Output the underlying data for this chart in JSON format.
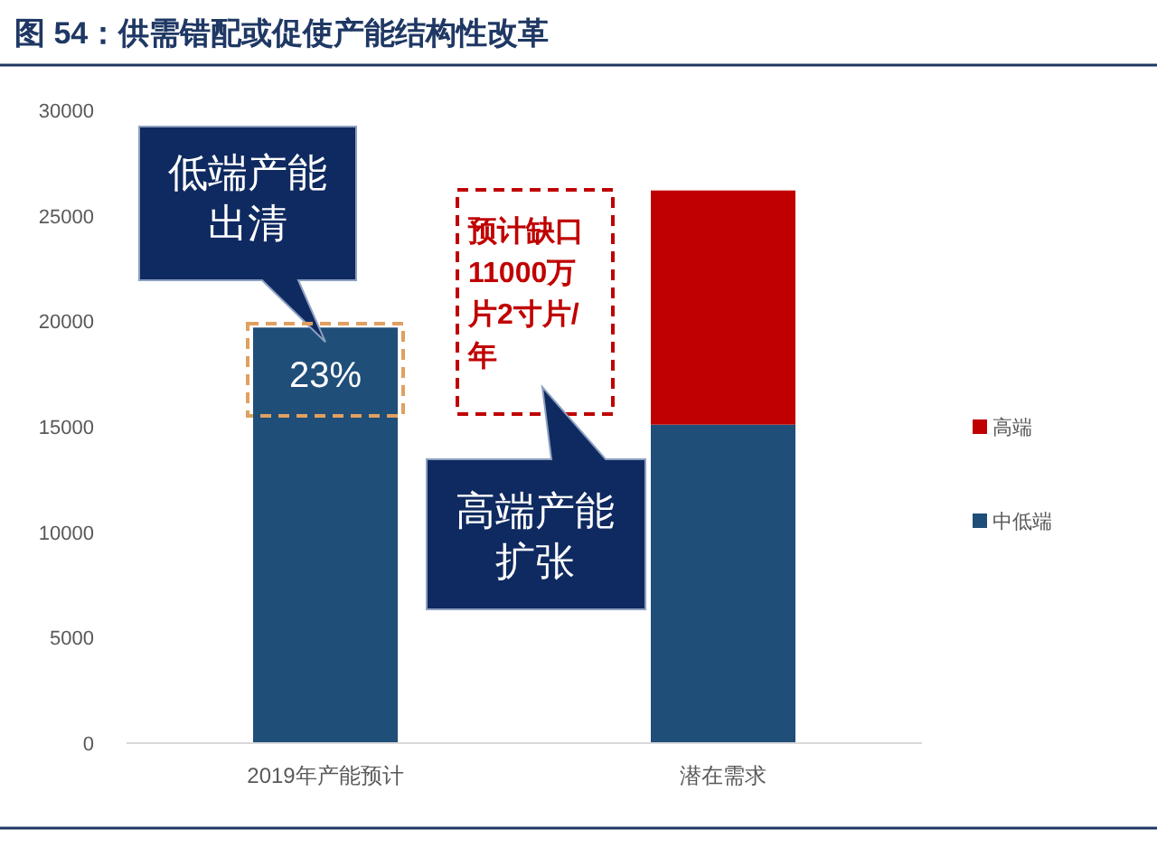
{
  "chart_data": {
    "type": "bar",
    "title": "图 54：供需错配或促使产能结构性改革",
    "categories": [
      "2019年产能预计",
      "潜在需求"
    ],
    "stacked": true,
    "series": [
      {
        "name": "中低端",
        "color": "#1f4e79",
        "values": [
          19700,
          15100
        ]
      },
      {
        "name": "高端",
        "color": "#c00000",
        "values": [
          null,
          11100
        ]
      }
    ],
    "ylim": [
      0,
      30000
    ],
    "yticks": [
      0,
      5000,
      10000,
      15000,
      20000,
      25000,
      30000
    ],
    "grid": false,
    "legend": "right",
    "annotations": [
      {
        "text": "低端产能出清",
        "x": "2019年产能预计",
        "y": 19700
      },
      "23%",
      "预计缺口11000万片2寸片/年",
      "高端产能扩张"
    ]
  }
}
